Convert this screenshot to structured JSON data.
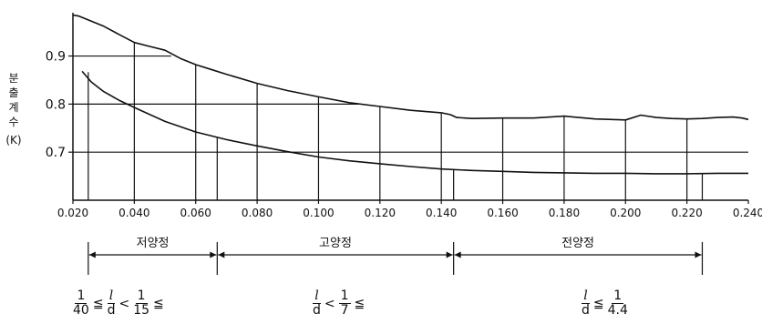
{
  "chart_data": {
    "type": "line",
    "ylabel": [
      "분",
      "출",
      "계",
      "수",
      "(K)"
    ],
    "xlim": [
      0.02,
      0.24
    ],
    "ylim": [
      0.6,
      0.99
    ],
    "x_ticks": [
      "0.020",
      "0.040",
      "0.060",
      "0.080",
      "0.100",
      "0.120",
      "0.140",
      "0.160",
      "0.180",
      "0.200",
      "0.220",
      "0.240"
    ],
    "y_ticks": [
      "0.9",
      "0.8",
      "0.7"
    ],
    "series": [
      {
        "x": [
          0.02,
          0.022,
          0.025,
          0.03,
          0.035,
          0.04,
          0.045,
          0.05,
          0.055,
          0.06,
          0.065,
          0.07,
          0.08,
          0.09,
          0.1,
          0.11,
          0.12,
          0.13,
          0.14,
          0.143,
          0.145,
          0.15,
          0.16,
          0.17,
          0.18,
          0.19,
          0.2,
          0.205,
          0.21,
          0.215,
          0.22,
          0.225,
          0.23,
          0.235,
          0.238,
          0.24
        ],
        "y": [
          0.985,
          0.983,
          0.975,
          0.962,
          0.945,
          0.928,
          0.92,
          0.912,
          0.895,
          0.882,
          0.872,
          0.862,
          0.843,
          0.828,
          0.815,
          0.803,
          0.795,
          0.787,
          0.782,
          0.778,
          0.772,
          0.77,
          0.771,
          0.771,
          0.775,
          0.769,
          0.767,
          0.777,
          0.772,
          0.77,
          0.769,
          0.77,
          0.772,
          0.773,
          0.771,
          0.768
        ]
      },
      {
        "x": [
          0.023,
          0.026,
          0.03,
          0.035,
          0.04,
          0.05,
          0.06,
          0.07,
          0.08,
          0.09,
          0.1,
          0.11,
          0.12,
          0.13,
          0.14,
          0.15,
          0.16,
          0.17,
          0.18,
          0.19,
          0.2,
          0.21,
          0.22,
          0.23,
          0.24
        ],
        "y": [
          0.868,
          0.846,
          0.826,
          0.808,
          0.793,
          0.764,
          0.742,
          0.726,
          0.713,
          0.701,
          0.69,
          0.682,
          0.676,
          0.67,
          0.665,
          0.662,
          0.66,
          0.658,
          0.657,
          0.656,
          0.656,
          0.655,
          0.655,
          0.656,
          0.656
        ]
      }
    ],
    "regions": [
      {
        "label": "저양정",
        "from": 0.025,
        "to": 0.067
      },
      {
        "label": "고양정",
        "from": 0.067,
        "to": 0.144
      },
      {
        "label": "전양정",
        "from": 0.144,
        "to": 0.225
      }
    ],
    "conditions": [
      {
        "a_num": "1",
        "a_den": "40",
        "op1": "≦",
        "b_num": "l",
        "b_den": "d",
        "op2": "<",
        "c_num": "1",
        "c_den": "15",
        "op3": "≦"
      },
      {
        "b_num": "l",
        "b_den": "d",
        "op2": "<",
        "c_num": "1",
        "c_den": "7",
        "op3": "≦"
      },
      {
        "b_num": "l",
        "b_den": "d",
        "op2": "≦",
        "c_num": "1",
        "c_den": "4.4"
      }
    ]
  }
}
